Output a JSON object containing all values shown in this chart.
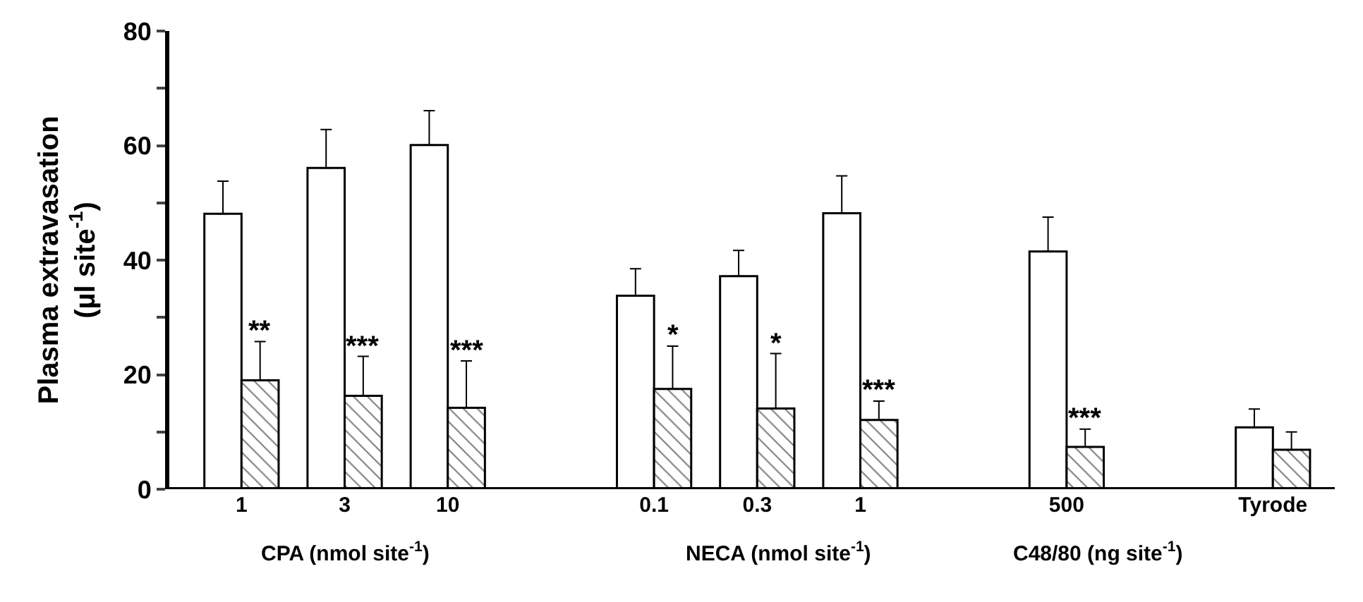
{
  "chart_data": {
    "type": "bar",
    "ylabel": "Plasma extravasation\n(µl site$^{-1}$)",
    "categories": [
      "1",
      "3",
      "10",
      null,
      "0.1",
      "0.3",
      "1",
      null,
      "500",
      null,
      "Tyrode"
    ],
    "series": [
      {
        "color": "#ffffff",
        "values": [
          48.1,
          56.1,
          60.1,
          null,
          33.8,
          37.2,
          48.2,
          null,
          41.5,
          null,
          10.8
        ],
        "errors": [
          5.7,
          6.7,
          6.0,
          null,
          4.7,
          4.5,
          6.5,
          null,
          6.0,
          null,
          3.2
        ]
      },
      {
        "color": "#000000",
        "values": [
          19.0,
          16.3,
          14.2,
          null,
          17.5,
          14.1,
          12.1,
          null,
          7.4,
          null,
          6.9
        ],
        "errors": [
          6.8,
          6.9,
          8.2,
          null,
          7.5,
          9.6,
          3.3,
          null,
          3.1,
          null,
          3.1
        ],
        "value_labels": [
          "**",
          "***",
          "***",
          null,
          "*",
          "*",
          "***",
          null,
          "***",
          null,
          null
        ]
      }
    ],
    "ylim": [
      0,
      80
    ],
    "yticks": [
      0,
      {
        "value": 10,
        "label": null
      },
      20,
      {
        "value": 30,
        "label": null
      },
      40,
      {
        "value": 50,
        "label": null
      },
      60,
      {
        "value": 70,
        "label": null
      },
      80
    ],
    "annotations": [
      "CPA (nmol site$^{-1}$)",
      "NECA (nmol site$^{-1}$)",
      "C48/80 (ng site$^{-1}$)"
    ]
  }
}
